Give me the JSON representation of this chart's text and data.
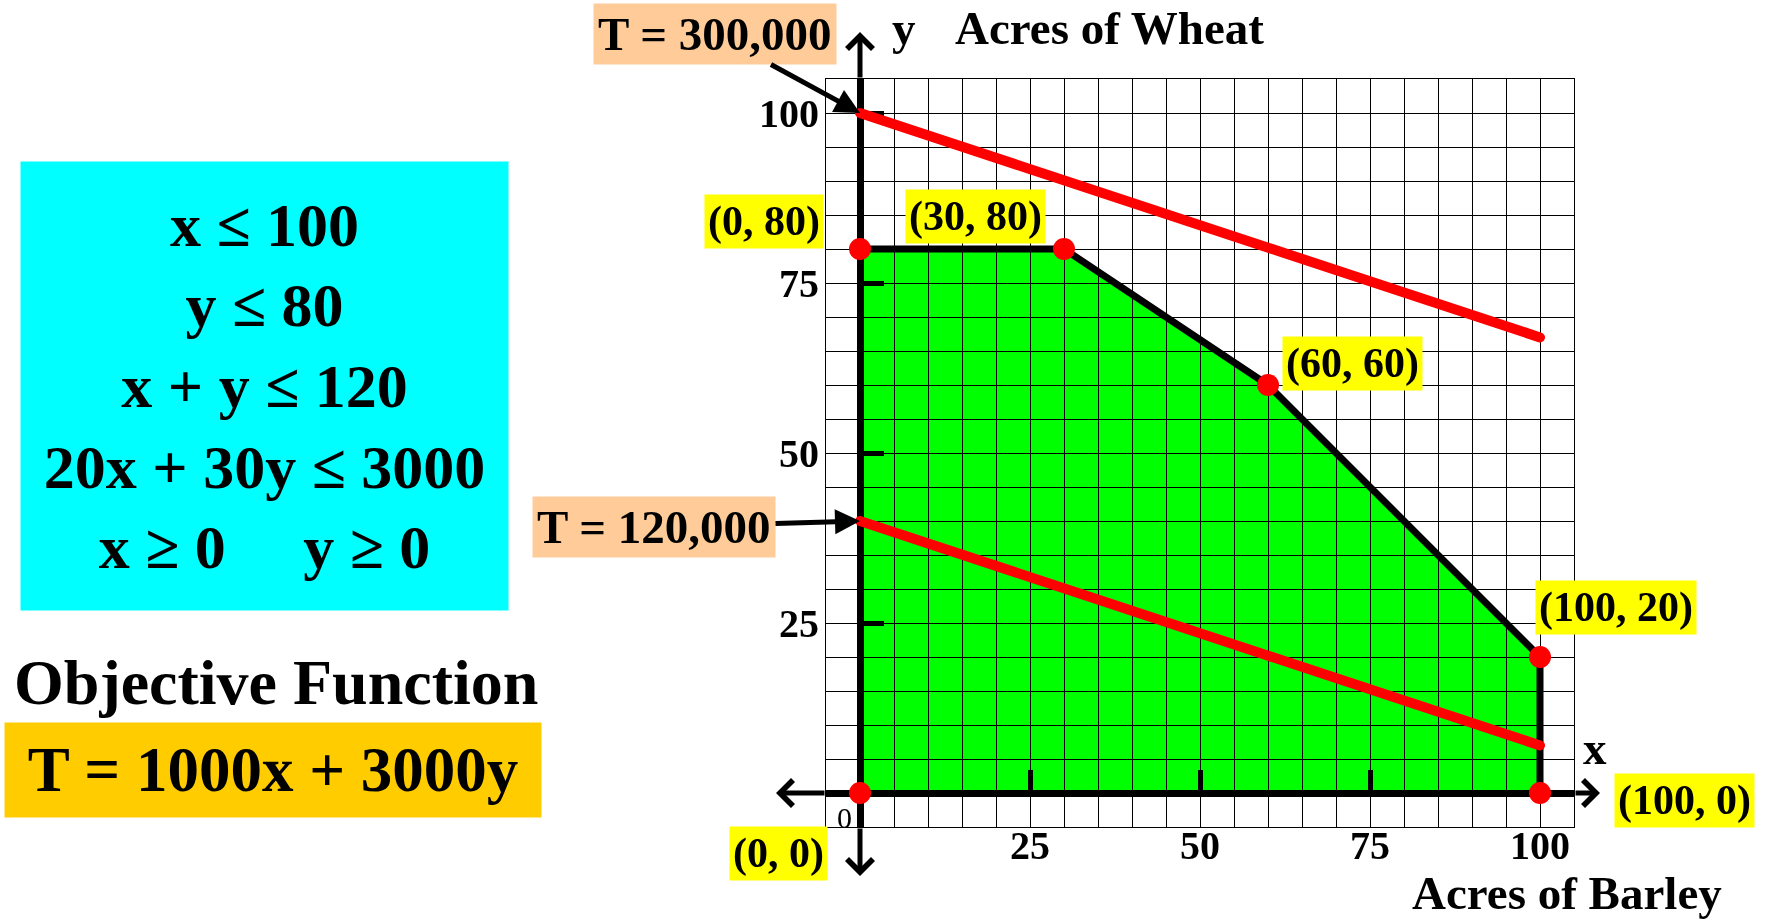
{
  "chart_data": {
    "type": "line",
    "xlabel": "Acres of Barley",
    "ylabel": "Acres of Wheat",
    "xlim": [
      -5,
      105
    ],
    "ylim": [
      -5,
      105
    ],
    "xticks": [
      {
        "value": 0,
        "label": null
      },
      {
        "value": 5,
        "label": null
      },
      {
        "value": 10,
        "label": null
      },
      {
        "value": 15,
        "label": null
      },
      {
        "value": 20,
        "label": null
      },
      25,
      {
        "value": 30,
        "label": null
      },
      {
        "value": 35,
        "label": null
      },
      {
        "value": 40,
        "label": null
      },
      {
        "value": 45,
        "label": null
      },
      50,
      {
        "value": 55,
        "label": null
      },
      {
        "value": 60,
        "label": null
      },
      {
        "value": 65,
        "label": null
      },
      {
        "value": 70,
        "label": null
      },
      75,
      {
        "value": 80,
        "label": null
      },
      {
        "value": 85,
        "label": null
      },
      {
        "value": 90,
        "label": null
      },
      {
        "value": 95,
        "label": null
      },
      100
    ],
    "yticks": [
      {
        "value": 0,
        "label": null
      },
      {
        "value": 5,
        "label": null
      },
      {
        "value": 10,
        "label": null
      },
      {
        "value": 15,
        "label": null
      },
      {
        "value": 20,
        "label": null
      },
      25,
      {
        "value": 30,
        "label": null
      },
      {
        "value": 35,
        "label": null
      },
      {
        "value": 40,
        "label": null
      },
      {
        "value": 45,
        "label": null
      },
      50,
      {
        "value": 55,
        "label": null
      },
      {
        "value": 60,
        "label": null
      },
      {
        "value": 65,
        "label": null
      },
      {
        "value": 70,
        "label": null
      },
      75,
      {
        "value": 80,
        "label": null
      },
      {
        "value": 85,
        "label": null
      },
      {
        "value": 90,
        "label": null
      },
      {
        "value": 95,
        "label": null
      },
      100
    ],
    "grid": true,
    "series": [
      {
        "type": "area",
        "color": "#00ff00",
        "x": [
          0,
          30,
          60,
          100,
          100
        ],
        "values": [
          80,
          80,
          60,
          20,
          0
        ]
      },
      {
        "name": "T = 300,000",
        "color": "#ff0000",
        "x": [
          0,
          100
        ],
        "values": [
          100,
          67
        ]
      },
      {
        "name": "T = 120,000",
        "color": "#ff0000",
        "x": [
          0,
          100
        ],
        "values": [
          40,
          7
        ]
      },
      {
        "type": "scatter",
        "marker": "circle",
        "color": "#ff0000",
        "x": [
          0,
          0,
          30,
          60,
          100,
          100
        ],
        "values": [
          0,
          80,
          80,
          60,
          20,
          0
        ]
      }
    ],
    "annotations": [
      "x ≤ 100\ny ≤ 80\nx + y ≤ 120\n20x + 30y ≤ 3000\nx ≥ 0     y ≥ 0",
      "Objective Function",
      "T = 1000x + 3000y",
      {
        "text": "(0, 0)",
        "x": 0,
        "y": 0
      },
      {
        "text": "(0, 80)",
        "x": 0,
        "y": 80
      },
      {
        "text": "(30, 80)",
        "x": 30,
        "y": 80
      },
      {
        "text": "(60, 60)",
        "x": 60,
        "y": 60
      },
      {
        "text": "(100, 20)",
        "x": 100,
        "y": 20
      },
      {
        "text": "(100, 0)",
        "x": 100,
        "y": 0
      },
      "0",
      "y",
      "x"
    ]
  }
}
